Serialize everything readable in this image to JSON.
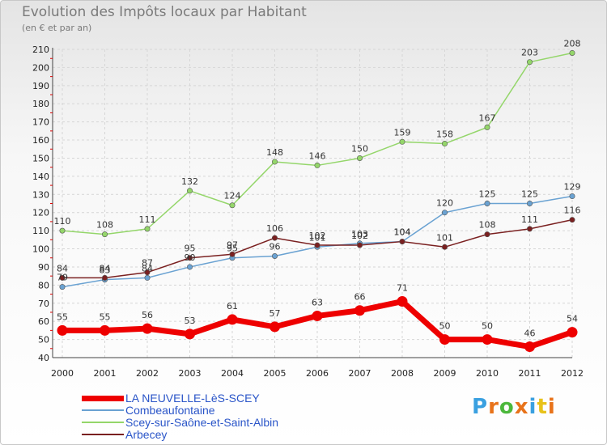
{
  "title": "Evolution des Impôts locaux par Habitant",
  "subtitle": "(en € et par an)",
  "logo_text": "Proxiti",
  "logo_colors": [
    "#3aa0e0",
    "#e8731a",
    "#4cb83c",
    "#e8731a",
    "#3aa0e0",
    "#e8c21a",
    "#e8731a"
  ],
  "chart_data": {
    "type": "line",
    "x": [
      "2000",
      "2001",
      "2002",
      "2003",
      "2004",
      "2005",
      "2006",
      "2007",
      "2008",
      "2009",
      "2010",
      "2011",
      "2012"
    ],
    "ylim": [
      40,
      210
    ],
    "yticks": [
      40,
      50,
      60,
      70,
      80,
      90,
      100,
      110,
      120,
      130,
      140,
      150,
      160,
      170,
      180,
      190,
      200,
      210
    ],
    "grid": true,
    "legend_position": "bottom-left",
    "series": [
      {
        "name": "LA NEUVELLE-LèS-SCEY",
        "color": "#ee0000",
        "values": [
          55,
          55,
          56,
          53,
          61,
          57,
          63,
          66,
          71,
          50,
          50,
          46,
          54
        ]
      },
      {
        "name": "Combeaufontaine",
        "color": "#6aa2d2",
        "values": [
          79,
          83,
          84,
          90,
          95,
          96,
          101,
          103,
          104,
          120,
          125,
          125,
          129
        ]
      },
      {
        "name": "Scey-sur-Saône-et-Saint-Albin",
        "color": "#94d66a",
        "values": [
          110,
          108,
          111,
          132,
          124,
          148,
          146,
          150,
          159,
          158,
          167,
          203,
          208
        ]
      },
      {
        "name": "Arbecey",
        "color": "#7a2020",
        "values": [
          84,
          84,
          87,
          95,
          97,
          106,
          102,
          102,
          104,
          101,
          108,
          111,
          116
        ]
      }
    ]
  }
}
